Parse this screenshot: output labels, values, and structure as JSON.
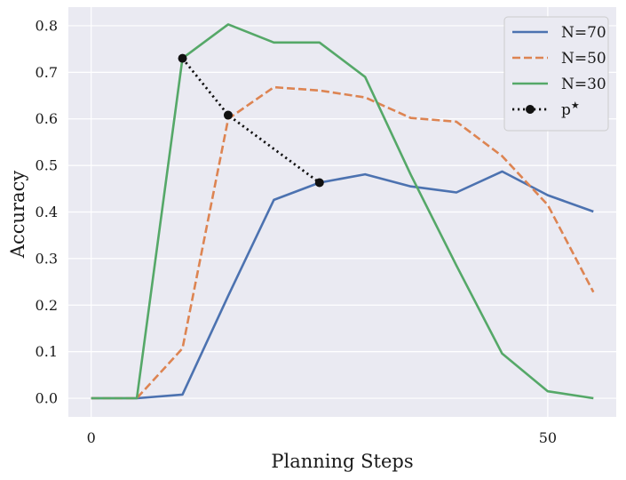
{
  "chart_data": {
    "type": "line",
    "title": "",
    "xlabel": "Planning Steps",
    "ylabel": "Accuracy",
    "xlim": [
      -2.5,
      57.5
    ],
    "ylim": [
      -0.04,
      0.84
    ],
    "xticks": [
      0,
      50
    ],
    "xtick_labels": [
      "0",
      "50"
    ],
    "yticks": [
      0.0,
      0.1,
      0.2,
      0.3,
      0.4,
      0.5,
      0.6,
      0.7,
      0.8
    ],
    "ytick_labels": [
      "0.0",
      "0.1",
      "0.2",
      "0.3",
      "0.4",
      "0.5",
      "0.6",
      "0.7",
      "0.8"
    ],
    "grid": true,
    "legend_position": "top-right",
    "background": "#eaeaf2",
    "series": [
      {
        "name": "N=70",
        "color": "#4c72b0",
        "style": "solid",
        "x": [
          0,
          5,
          10,
          15,
          20,
          25,
          30,
          35,
          40,
          45,
          50,
          55
        ],
        "y": [
          0.0,
          0.0,
          0.008,
          0.22,
          0.426,
          0.463,
          0.481,
          0.455,
          0.442,
          0.487,
          0.436,
          0.401
        ]
      },
      {
        "name": "N=50",
        "color": "#dd8452",
        "style": "dashed",
        "x": [
          0,
          5,
          10,
          15,
          20,
          25,
          30,
          35,
          40,
          45,
          50,
          55
        ],
        "y": [
          0.0,
          0.0,
          0.107,
          0.6,
          0.668,
          0.661,
          0.646,
          0.602,
          0.594,
          0.52,
          0.415,
          0.228
        ]
      },
      {
        "name": "N=30",
        "color": "#55a868",
        "style": "solid",
        "x": [
          0,
          5,
          10,
          15,
          20,
          25,
          30,
          35,
          40,
          45,
          50,
          55
        ],
        "y": [
          0.0,
          0.0,
          0.73,
          0.803,
          0.764,
          0.764,
          0.69,
          0.48,
          0.285,
          0.096,
          0.015,
          0.0
        ]
      },
      {
        "name": "p",
        "name_superscript": "★",
        "color": "#111111",
        "style": "dotted",
        "marker": "circle",
        "x": [
          10,
          15,
          25
        ],
        "y": [
          0.73,
          0.608,
          0.463
        ]
      }
    ]
  }
}
